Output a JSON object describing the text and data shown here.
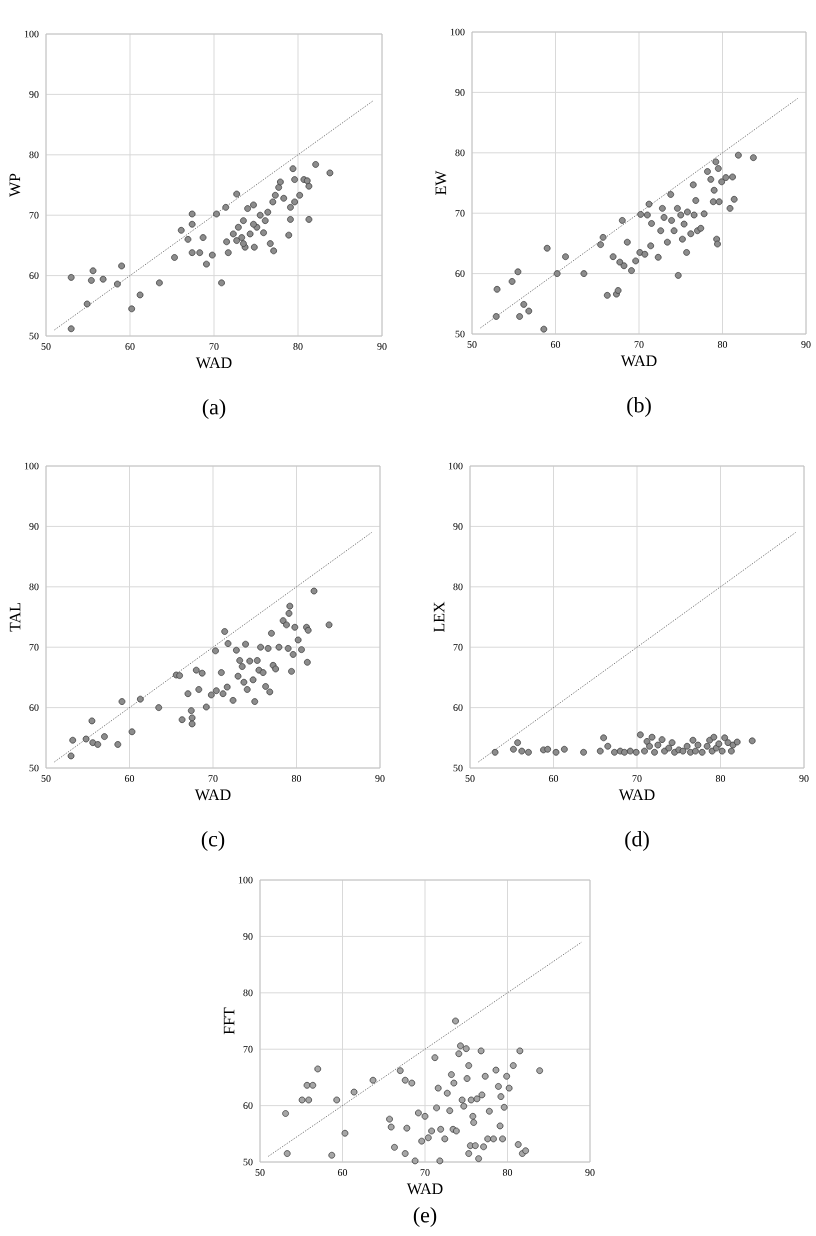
{
  "chart_data": [
    {
      "type": "scatter",
      "xlabel": "WAD",
      "ylabel": "WP",
      "xlim": [
        50,
        90
      ],
      "ylim": [
        50,
        100
      ],
      "xticks": [
        50,
        60,
        70,
        80,
        90
      ],
      "yticks": [
        50,
        60,
        70,
        80,
        90,
        100
      ],
      "grid": true,
      "annotations": [
        "(a)"
      ],
      "series": [
        {
          "color": "#8c8c8c",
          "marker": "circle",
          "x": [
            53.0,
            53.0,
            54.9,
            55.6,
            55.4,
            56.8,
            58.5,
            59.0,
            60.2,
            61.2,
            63.5,
            65.3,
            66.1,
            66.9,
            67.4,
            67.4,
            67.4,
            68.3,
            68.7,
            69.1,
            69.8,
            70.3,
            70.9,
            71.4,
            71.5,
            71.7,
            72.7,
            72.9,
            73.3,
            73.5,
            73.7,
            74.0,
            74.3,
            74.7,
            74.8,
            75.1,
            75.5,
            75.9,
            76.1,
            76.4,
            76.7,
            77.0,
            77.1,
            77.3,
            77.7,
            77.9,
            78.3,
            78.9,
            79.1,
            79.1,
            79.4,
            79.6,
            79.6,
            80.2,
            80.7,
            81.3,
            81.3,
            82.1,
            83.8,
            72.7,
            72.3,
            73.5,
            74.7,
            81.1
          ],
          "values": [
            59.7,
            51.2,
            55.3,
            60.8,
            59.2,
            59.4,
            58.6,
            61.6,
            54.5,
            56.8,
            58.8,
            63.0,
            67.5,
            66.0,
            70.2,
            68.5,
            63.8,
            63.8,
            66.3,
            61.9,
            63.4,
            70.2,
            58.8,
            71.3,
            65.6,
            63.8,
            73.5,
            68.0,
            66.3,
            69.1,
            64.7,
            71.1,
            66.9,
            71.7,
            64.7,
            68.0,
            70.0,
            67.1,
            69.1,
            70.5,
            65.3,
            72.2,
            64.1,
            73.3,
            74.6,
            75.5,
            72.8,
            66.7,
            71.3,
            69.3,
            77.7,
            75.9,
            72.2,
            73.3,
            75.9,
            69.3,
            74.8,
            78.4,
            77.0,
            65.8,
            66.9,
            65.3,
            68.5,
            75.7
          ]
        },
        {
          "type": "line",
          "color": "#7f7f7f",
          "line_style": "dotted",
          "marker": "none",
          "x": [
            51,
            89
          ],
          "values": [
            51,
            89
          ]
        }
      ]
    },
    {
      "type": "scatter",
      "xlabel": "WAD",
      "ylabel": "EW",
      "xlim": [
        50,
        90
      ],
      "ylim": [
        50,
        100
      ],
      "xticks": [
        50,
        60,
        70,
        80,
        90
      ],
      "yticks": [
        50,
        60,
        70,
        80,
        90,
        100
      ],
      "grid": true,
      "annotations": [
        "(b)"
      ],
      "series": [
        {
          "color": "#8c8c8c",
          "marker": "circle",
          "x": [
            52.9,
            53.0,
            54.8,
            55.5,
            55.7,
            56.2,
            56.8,
            58.6,
            59.0,
            60.2,
            61.2,
            63.4,
            65.4,
            65.7,
            66.2,
            66.9,
            67.3,
            67.5,
            67.7,
            68.0,
            68.2,
            68.6,
            69.1,
            69.6,
            70.1,
            70.2,
            70.7,
            71.0,
            71.2,
            71.4,
            71.5,
            72.3,
            72.6,
            72.8,
            73.0,
            73.4,
            73.8,
            73.9,
            74.2,
            74.6,
            74.7,
            75.0,
            75.2,
            75.4,
            75.7,
            75.8,
            76.2,
            76.5,
            76.6,
            76.8,
            77.0,
            77.4,
            77.8,
            78.2,
            78.6,
            78.9,
            79.0,
            79.2,
            79.3,
            79.5,
            79.4,
            79.6,
            79.9,
            80.4,
            80.9,
            81.2,
            81.4,
            81.9,
            83.7
          ],
          "values": [
            52.9,
            57.4,
            58.7,
            60.3,
            52.9,
            54.9,
            53.8,
            50.8,
            64.2,
            60.0,
            62.8,
            60.0,
            64.8,
            66.0,
            56.4,
            62.8,
            56.6,
            57.2,
            61.9,
            68.8,
            61.3,
            65.2,
            60.5,
            62.1,
            63.5,
            69.8,
            63.2,
            69.7,
            71.5,
            64.6,
            68.3,
            62.7,
            67.1,
            70.8,
            69.3,
            65.2,
            73.1,
            68.8,
            67.1,
            70.8,
            59.7,
            69.7,
            65.7,
            68.2,
            63.5,
            70.2,
            66.6,
            74.7,
            69.7,
            72.1,
            67.1,
            67.5,
            69.9,
            76.9,
            75.6,
            71.9,
            73.8,
            78.5,
            65.7,
            77.4,
            64.9,
            71.9,
            75.2,
            75.9,
            70.8,
            76.0,
            72.3,
            79.6,
            79.2
          ]
        },
        {
          "type": "line",
          "color": "#7f7f7f",
          "line_style": "dotted",
          "marker": "none",
          "x": [
            51,
            89
          ],
          "values": [
            51,
            89
          ]
        }
      ]
    },
    {
      "type": "scatter",
      "xlabel": "WAD",
      "ylabel": "TAL",
      "xlim": [
        50,
        90
      ],
      "ylim": [
        50,
        100
      ],
      "xticks": [
        50,
        60,
        70,
        80,
        90
      ],
      "yticks": [
        50,
        60,
        70,
        80,
        90,
        100
      ],
      "grid": true,
      "annotations": [
        "(c)"
      ],
      "series": [
        {
          "color": "#8c8c8c",
          "marker": "circle",
          "x": [
            53.0,
            53.2,
            54.8,
            55.5,
            55.6,
            56.2,
            57.0,
            58.6,
            59.1,
            60.3,
            61.3,
            63.5,
            65.6,
            66.0,
            66.3,
            67.0,
            67.4,
            67.5,
            67.5,
            68.0,
            68.3,
            68.7,
            69.2,
            69.8,
            70.3,
            70.4,
            71.0,
            71.2,
            71.4,
            71.7,
            71.8,
            72.4,
            72.8,
            73.0,
            73.2,
            73.5,
            73.7,
            73.9,
            74.1,
            74.4,
            74.8,
            75.0,
            75.3,
            75.5,
            75.7,
            76.0,
            76.3,
            76.6,
            76.8,
            77.0,
            77.2,
            77.5,
            77.9,
            78.4,
            78.8,
            79.0,
            79.1,
            79.2,
            79.4,
            79.6,
            79.8,
            80.2,
            80.6,
            81.2,
            81.3,
            81.4,
            82.1,
            83.9
          ],
          "values": [
            52.0,
            54.6,
            54.8,
            57.8,
            54.2,
            53.9,
            55.2,
            53.9,
            61.0,
            56.0,
            61.4,
            60.0,
            65.4,
            65.3,
            58.0,
            62.3,
            59.5,
            58.3,
            57.3,
            66.2,
            63.0,
            65.7,
            60.1,
            62.1,
            69.4,
            62.8,
            65.8,
            62.3,
            72.6,
            63.4,
            70.6,
            61.2,
            69.5,
            65.2,
            67.8,
            66.8,
            64.2,
            70.5,
            63.0,
            67.7,
            64.6,
            61.0,
            67.8,
            66.2,
            70.0,
            65.8,
            63.5,
            69.8,
            62.6,
            72.3,
            67.0,
            66.4,
            70.0,
            74.4,
            73.7,
            69.8,
            75.6,
            76.8,
            66.0,
            68.8,
            73.3,
            71.2,
            69.6,
            73.3,
            67.5,
            72.8,
            79.3,
            73.7
          ]
        },
        {
          "type": "line",
          "color": "#7f7f7f",
          "line_style": "dotted",
          "marker": "none",
          "x": [
            51,
            89
          ],
          "values": [
            51,
            89
          ]
        }
      ]
    },
    {
      "type": "scatter",
      "xlabel": "WAD",
      "ylabel": "LEX",
      "xlim": [
        50,
        90
      ],
      "ylim": [
        50,
        100
      ],
      "xticks": [
        50,
        60,
        70,
        80,
        90
      ],
      "yticks": [
        50,
        60,
        70,
        80,
        90,
        100
      ],
      "grid": true,
      "annotations": [
        "(d)"
      ],
      "series": [
        {
          "color": "#8c8c8c",
          "marker": "circle",
          "x": [
            53.0,
            55.2,
            55.7,
            56.2,
            57.0,
            58.8,
            59.3,
            60.3,
            61.3,
            63.6,
            65.6,
            66.0,
            66.5,
            67.3,
            68.0,
            68.5,
            69.2,
            69.9,
            70.4,
            70.9,
            71.2,
            71.5,
            71.8,
            72.1,
            72.5,
            73.0,
            73.3,
            73.8,
            74.2,
            74.5,
            75.0,
            75.5,
            76.0,
            76.4,
            76.7,
            77.0,
            77.3,
            77.8,
            78.4,
            78.7,
            79.0,
            79.2,
            79.5,
            79.8,
            80.2,
            80.5,
            80.9,
            81.3,
            81.5,
            82.0,
            83.8
          ],
          "values": [
            52.6,
            53.1,
            54.2,
            52.8,
            52.6,
            53.0,
            53.1,
            52.6,
            53.1,
            52.6,
            52.8,
            55.0,
            53.6,
            52.6,
            52.8,
            52.6,
            52.8,
            52.6,
            55.5,
            52.8,
            54.4,
            53.6,
            55.1,
            52.6,
            53.8,
            54.7,
            52.8,
            53.3,
            54.2,
            52.6,
            53.0,
            52.8,
            53.6,
            52.6,
            54.6,
            52.8,
            53.8,
            52.6,
            53.6,
            54.6,
            52.8,
            55.1,
            53.3,
            54.0,
            52.8,
            55.0,
            54.2,
            52.8,
            53.8,
            54.3,
            54.5
          ]
        },
        {
          "type": "line",
          "color": "#7f7f7f",
          "line_style": "dotted",
          "marker": "none",
          "x": [
            51,
            89
          ],
          "values": [
            51,
            89
          ]
        }
      ]
    },
    {
      "type": "scatter",
      "xlabel": "WAD",
      "ylabel": "FFT",
      "xlim": [
        50,
        90
      ],
      "ylim": [
        50,
        100
      ],
      "xticks": [
        50,
        60,
        70,
        80,
        90
      ],
      "yticks": [
        50,
        60,
        70,
        80,
        90,
        100
      ],
      "grid": true,
      "annotations": [
        "(e)"
      ],
      "series": [
        {
          "color": "#a6a6a6",
          "marker": "circle",
          "x": [
            53.1,
            53.3,
            55.1,
            55.7,
            55.9,
            56.4,
            57.0,
            58.7,
            59.3,
            60.3,
            61.4,
            63.7,
            65.7,
            65.9,
            66.3,
            67.0,
            67.6,
            67.6,
            67.8,
            68.4,
            68.8,
            69.2,
            69.6,
            70.0,
            70.4,
            70.8,
            71.2,
            71.4,
            71.6,
            71.8,
            71.9,
            72.4,
            72.7,
            73.0,
            73.2,
            73.4,
            73.5,
            73.7,
            73.8,
            74.1,
            74.3,
            74.5,
            74.7,
            75.0,
            75.1,
            75.3,
            75.3,
            75.5,
            75.6,
            75.8,
            75.9,
            76.1,
            76.3,
            76.5,
            76.8,
            76.9,
            77.1,
            77.3,
            77.6,
            77.8,
            78.3,
            78.6,
            78.9,
            79.1,
            79.2,
            79.4,
            79.6,
            79.9,
            80.2,
            80.7,
            81.3,
            81.5,
            81.8,
            82.2,
            83.9
          ],
          "values": [
            58.6,
            51.5,
            61.0,
            63.6,
            61.0,
            63.6,
            66.5,
            51.2,
            61.0,
            55.1,
            62.4,
            64.5,
            57.6,
            56.2,
            52.6,
            66.2,
            64.5,
            51.5,
            56.0,
            64.0,
            50.2,
            58.7,
            53.7,
            58.1,
            54.3,
            55.5,
            68.5,
            59.6,
            63.1,
            50.2,
            55.8,
            54.1,
            62.2,
            59.1,
            65.5,
            55.8,
            64.0,
            75.0,
            55.5,
            69.2,
            70.6,
            61.0,
            59.9,
            70.1,
            64.8,
            67.1,
            51.5,
            52.9,
            61.0,
            58.1,
            57.0,
            52.9,
            61.2,
            50.6,
            69.7,
            61.9,
            52.7,
            65.2,
            54.1,
            59.0,
            54.1,
            66.3,
            63.4,
            56.4,
            61.6,
            54.1,
            59.7,
            65.2,
            63.1,
            67.1,
            53.1,
            69.7,
            51.5,
            52.0,
            66.2
          ]
        },
        {
          "type": "line",
          "color": "#7f7f7f",
          "line_style": "dotted",
          "marker": "none",
          "x": [
            51,
            89
          ],
          "values": [
            51,
            89
          ]
        }
      ]
    }
  ]
}
